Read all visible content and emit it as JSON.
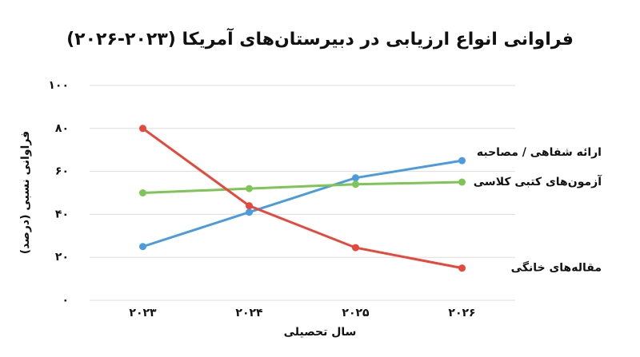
{
  "chart_data": {
    "type": "line",
    "title": "فراوانی انواع ارزیابی در دبیرستان‌های آمریکا (۲۰۲۳-۲۰۲۶)",
    "x_label": "سال تحصیلی",
    "y_label": "فراوانی نسبی (درصد)",
    "categories": [
      "۲۰۲۳",
      "۲۰۲۴",
      "۲۰۲۵",
      "۲۰۲۶"
    ],
    "series": [
      {
        "name": "ارائه شفاهی / مصاحبه",
        "color": "#4a9be0",
        "values": [
          25,
          41,
          57,
          65
        ]
      },
      {
        "name": "آزمون‌های کتبی کلاسی",
        "color": "#7dc554",
        "values": [
          50,
          52,
          54,
          55
        ]
      },
      {
        "name": "مقاله‌های خانگی",
        "color": "#e8473b",
        "values": [
          80,
          44,
          24.5,
          15
        ]
      }
    ],
    "ylim": [
      0,
      100
    ],
    "yticks": [
      {
        "value": 0,
        "label": "۰"
      },
      {
        "value": 20,
        "label": "۲۰"
      },
      {
        "value": 40,
        "label": "۴۰"
      },
      {
        "value": 60,
        "label": "۶۰"
      },
      {
        "value": 80,
        "label": "۸۰"
      },
      {
        "value": 100,
        "label": "۱۰۰"
      }
    ],
    "grid": true
  }
}
